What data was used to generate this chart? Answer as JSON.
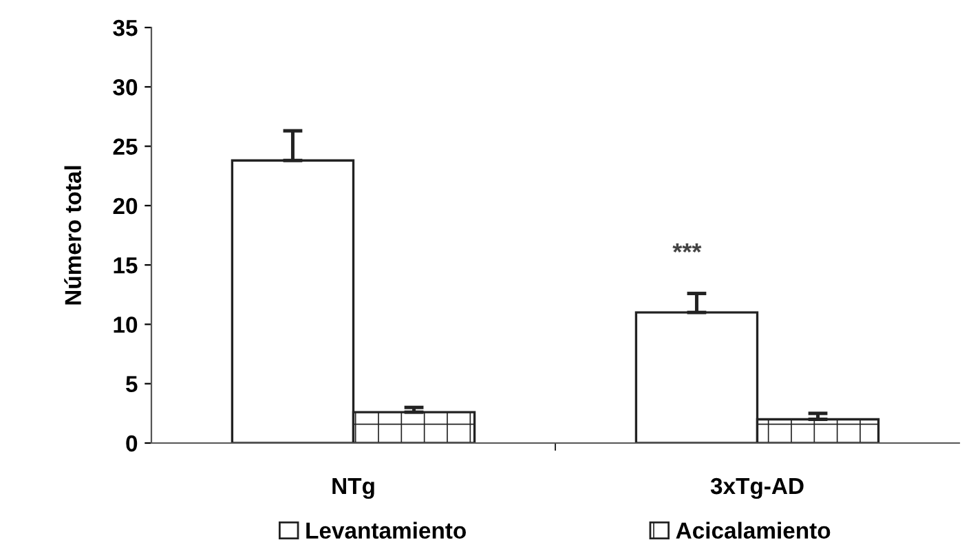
{
  "chart_data": {
    "type": "bar",
    "ylabel": "Número total",
    "categories": [
      "NTg",
      "3xTg-AD"
    ],
    "series": [
      {
        "name": "Levantamiento",
        "color": "#ffffff",
        "values": [
          23.8,
          11.0
        ],
        "errors": [
          2.5,
          1.6
        ]
      },
      {
        "name": "Acicalamiento",
        "color": "#222222",
        "values": [
          2.6,
          2.0
        ],
        "errors": [
          0.4,
          0.5
        ]
      }
    ],
    "ylim": [
      0,
      35
    ],
    "yticks": [
      0,
      5,
      10,
      15,
      20,
      25,
      30,
      35
    ],
    "grid": false,
    "legend": "bottom",
    "annotations": [
      "***"
    ]
  }
}
